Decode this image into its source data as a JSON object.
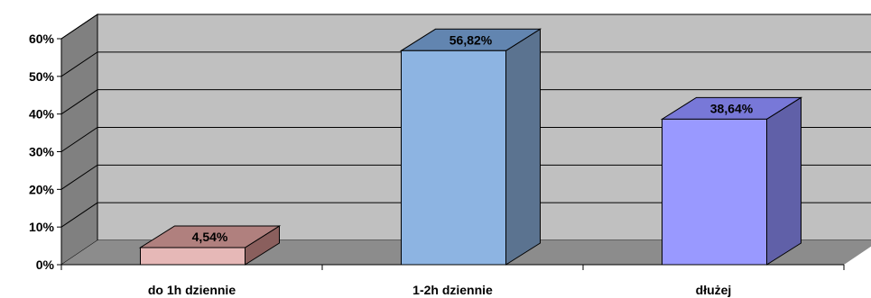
{
  "chart_data": {
    "type": "bar",
    "three_d": true,
    "categories": [
      "do 1h dziennie",
      "1-2h dziennie",
      "dłużej"
    ],
    "values": [
      4.54,
      56.82,
      38.64
    ],
    "data_labels": [
      "4,54%",
      "56,82%",
      "38,64%"
    ],
    "ylim": [
      0,
      60
    ],
    "yticks": [
      0,
      10,
      20,
      30,
      40,
      50,
      60
    ],
    "ytick_labels": [
      "0%",
      "10%",
      "20%",
      "30%",
      "40%",
      "50%",
      "60%"
    ],
    "grid": true,
    "legend": false,
    "title": "",
    "xlabel": "",
    "ylabel": "",
    "colors": {
      "wall": "#c0c0c0",
      "side_wall": "#808080",
      "floor": "#8c8c8c",
      "bar_front": [
        "#e6b8b7",
        "#8db4e2",
        "#9999ff"
      ],
      "bar_top": [
        "#b0807e",
        "#6285b0",
        "#7878d8"
      ],
      "bar_side": [
        "#8a5f5d",
        "#5b7390",
        "#6060a8"
      ]
    }
  }
}
